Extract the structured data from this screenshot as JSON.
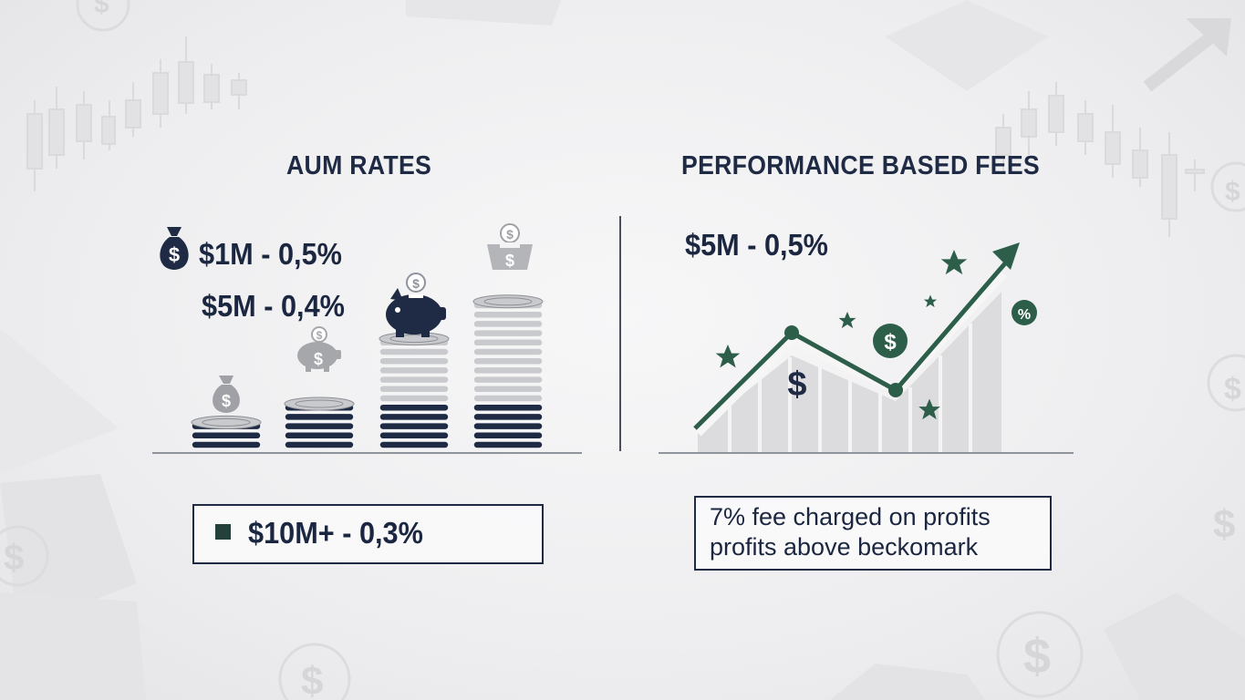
{
  "aum": {
    "heading": "AUM RATES",
    "tiers": [
      {
        "label": "$1M - 0,5%"
      },
      {
        "label": "$5M - 0,4%"
      },
      {
        "label": "$10M+ - 0,3%"
      }
    ]
  },
  "performance": {
    "heading": "PERFORMANCE BASED FEES",
    "rate": "$5M - 0,5%",
    "description_line1": "7% fee charged on profits",
    "description_line2": "profits above beckomark",
    "chart_symbols": {
      "dollar": "$",
      "percent": "%"
    }
  },
  "icons": [
    "money-bag-icon",
    "piggy-bank-icon",
    "coin-stack-icon",
    "dollar-coin-icon",
    "star-icon",
    "trend-arrow-icon",
    "percent-badge-icon"
  ],
  "colors": {
    "navy": "#1f2a44",
    "green": "#2c5e4a",
    "gray": "#8e9096",
    "light_gray": "#c9cacd"
  }
}
